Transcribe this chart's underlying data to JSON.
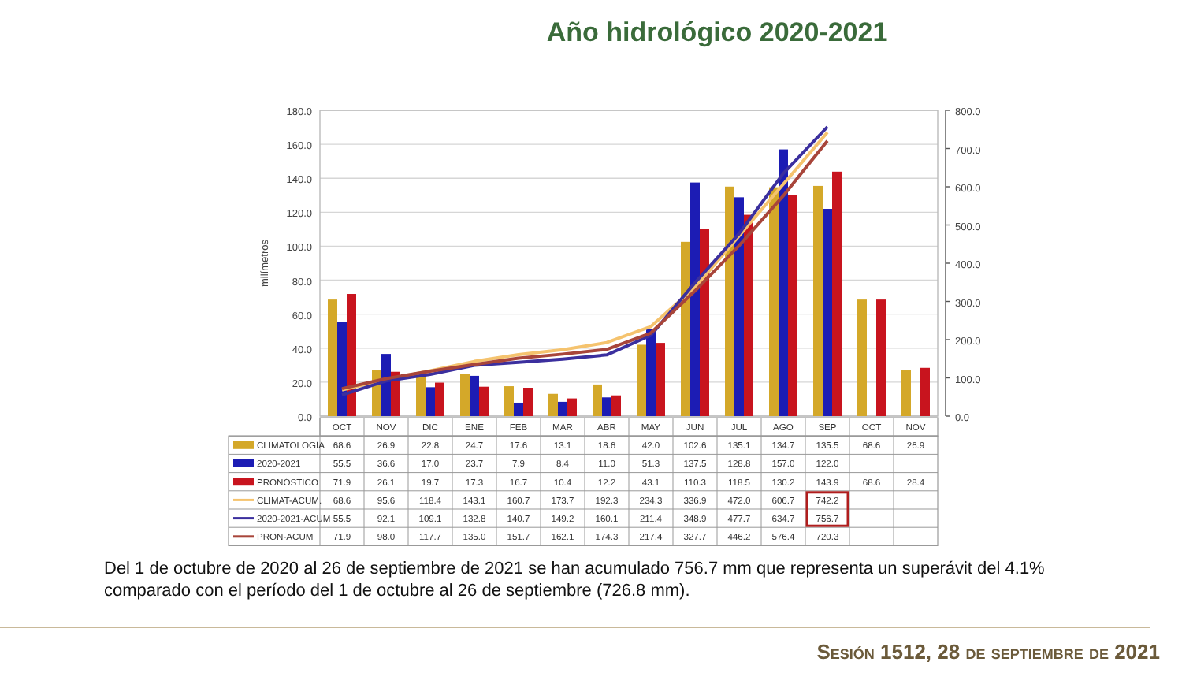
{
  "chart_data": {
    "type": "bar",
    "title": "Año hidrológico 2020-2021",
    "ylabel": "milímetros",
    "categories": [
      "OCT",
      "NOV",
      "DIC",
      "ENE",
      "FEB",
      "MAR",
      "ABR",
      "MAY",
      "JUN",
      "JUL",
      "AGO",
      "SEP",
      "OCT",
      "NOV"
    ],
    "series": [
      {
        "name": "CLIMATOLOGÍA",
        "color": "#d4a829",
        "values": [
          68.6,
          26.9,
          22.8,
          24.7,
          17.6,
          13.1,
          18.6,
          42.0,
          102.6,
          135.1,
          134.7,
          135.5,
          68.6,
          26.9
        ],
        "value_labels": [
          "68.6",
          "26.9",
          "22.8",
          "24.7",
          "17.6",
          "13.1",
          "18.6",
          "42.0",
          "102.6",
          "135.1",
          "134.7",
          "135.5",
          "68.6",
          "26.9"
        ]
      },
      {
        "name": "2020-2021",
        "color": "#1c1cb4",
        "values": [
          55.5,
          36.6,
          17.0,
          23.7,
          7.9,
          8.4,
          11.0,
          51.3,
          137.5,
          128.8,
          157.0,
          122.0,
          null,
          null
        ],
        "value_labels": [
          "55.5",
          "36.6",
          "17.0",
          "23.7",
          "7.9",
          "8.4",
          "11.0",
          "51.3",
          "137.5",
          "128.8",
          "157.0",
          "122.0",
          null,
          null
        ]
      },
      {
        "name": "PRONÓSTICO",
        "color": "#c8141e",
        "values": [
          71.9,
          26.1,
          19.7,
          17.3,
          16.7,
          10.4,
          12.2,
          43.1,
          110.3,
          118.5,
          130.2,
          143.9,
          68.6,
          28.4
        ],
        "value_labels": [
          "71.9",
          "26.1",
          "19.7",
          "17.3",
          "16.7",
          "10.4",
          "12.2",
          "43.1",
          "110.3",
          "118.5",
          "130.2",
          "143.9",
          "68.6",
          "28.4"
        ]
      },
      {
        "name": "CLIMAT-ACUM.",
        "type": "line",
        "axis": "y2",
        "color": "#f5c36e",
        "values": [
          68.6,
          95.6,
          118.4,
          143.1,
          160.7,
          173.7,
          192.3,
          234.3,
          336.9,
          472.0,
          606.7,
          742.2,
          null,
          null
        ],
        "value_labels": [
          "68.6",
          "95.6",
          "118.4",
          "143.1",
          "160.7",
          "173.7",
          "192.3",
          "234.3",
          "336.9",
          "472.0",
          "606.7",
          "742.2",
          null,
          null
        ]
      },
      {
        "name": "2020-2021-ACUM",
        "type": "line",
        "axis": "y2",
        "color": "#3b2f9e",
        "values": [
          55.5,
          92.1,
          109.1,
          132.8,
          140.7,
          149.2,
          160.1,
          211.4,
          348.9,
          477.7,
          634.7,
          756.7,
          null,
          null
        ],
        "value_labels": [
          "55.5",
          "92.1",
          "109.1",
          "132.8",
          "140.7",
          "149.2",
          "160.1",
          "211.4",
          "348.9",
          "477.7",
          "634.7",
          "756.7",
          null,
          null
        ]
      },
      {
        "name": "PRON-ACUM",
        "type": "line",
        "axis": "y2",
        "color": "#a8453a",
        "values": [
          71.9,
          98.0,
          117.7,
          135.0,
          151.7,
          162.1,
          174.3,
          217.4,
          327.7,
          446.2,
          576.4,
          720.3,
          null,
          null
        ],
        "value_labels": [
          "71.9",
          "98.0",
          "117.7",
          "135.0",
          "151.7",
          "162.1",
          "174.3",
          "217.4",
          "327.7",
          "446.2",
          "576.4",
          "720.3",
          null,
          null
        ]
      }
    ],
    "ylim": [
      0,
      180
    ],
    "yticks": [
      {
        "value": 0,
        "label": "0.0"
      },
      {
        "value": 20,
        "label": "20.0"
      },
      {
        "value": 40,
        "label": "40.0"
      },
      {
        "value": 60,
        "label": "60.0"
      },
      {
        "value": 80,
        "label": "80.0"
      },
      {
        "value": 100,
        "label": "100.0"
      },
      {
        "value": 120,
        "label": "120.0"
      },
      {
        "value": 140,
        "label": "140.0"
      },
      {
        "value": 160,
        "label": "160.0"
      },
      {
        "value": 180,
        "label": "180.0"
      }
    ],
    "y2lim": [
      0,
      800
    ],
    "y2ticks": [
      {
        "value": 0,
        "label": "0.0"
      },
      {
        "value": 100,
        "label": "100.0"
      },
      {
        "value": 200,
        "label": "200.0"
      },
      {
        "value": 300,
        "label": "300.0"
      },
      {
        "value": 400,
        "label": "400.0"
      },
      {
        "value": 500,
        "label": "500.0"
      },
      {
        "value": 600,
        "label": "600.0"
      },
      {
        "value": 700,
        "label": "700.0"
      },
      {
        "value": 800,
        "label": "800.0"
      }
    ],
    "grid": "y",
    "legend": "bottom",
    "annotations": [
      "Del 1 de octubre de 2020 al 26 de septiembre de 2021 se han acumulado 756.7 mm que representa un superávit del 4.1% comparado con el período del 1 de octubre al 26 de septiembre (726.8 mm).",
      "Sesión 1512, 28 de septiembre de 2021"
    ]
  }
}
